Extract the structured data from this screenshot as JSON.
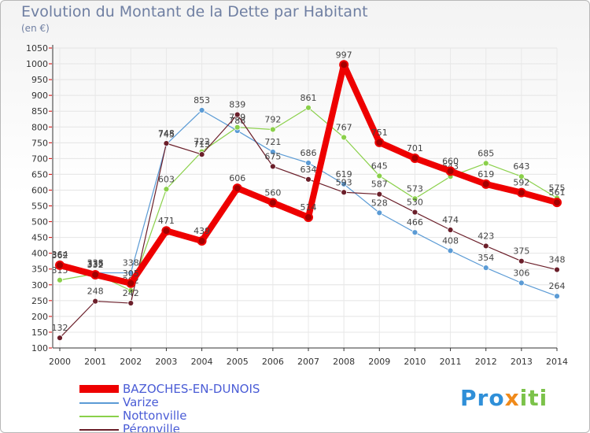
{
  "chart_data": {
    "type": "line",
    "title": "Evolution du Montant de la Dette par Habitant",
    "subtitle": "(en €)",
    "xlabel": "",
    "ylabel": "",
    "ylim": [
      100,
      1050
    ],
    "yticks": [
      100,
      150,
      200,
      250,
      300,
      350,
      400,
      450,
      500,
      550,
      600,
      650,
      700,
      750,
      800,
      850,
      900,
      950,
      1000,
      1050
    ],
    "categories": [
      "2000",
      "2001",
      "2002",
      "2003",
      "2004",
      "2005",
      "2006",
      "2007",
      "2008",
      "2009",
      "2010",
      "2011",
      "2012",
      "2013",
      "2014"
    ],
    "series": [
      {
        "name": "Varize",
        "color": "#5b9bd5",
        "values": [
          364,
          338,
          338,
          745,
          853,
          788,
          721,
          686,
          619,
          528,
          466,
          408,
          354,
          306,
          264
        ]
      },
      {
        "name": "Nottonville",
        "color": "#8ad04a",
        "values": [
          315,
          335,
          282,
          603,
          722,
          799,
          792,
          861,
          767,
          645,
          573,
          643,
          685,
          643,
          575
        ]
      },
      {
        "name": "Péronville",
        "color": "#6b1f2a",
        "values": [
          132,
          248,
          242,
          748,
          713,
          839,
          675,
          634,
          593,
          587,
          530,
          474,
          423,
          375,
          348
        ]
      },
      {
        "name": "BAZOCHES-EN-DUNOIS",
        "color": "#ee0000",
        "values": [
          362,
          332,
          305,
          471,
          439,
          606,
          560,
          514,
          997,
          751,
          701,
          660,
          619,
          592,
          561
        ]
      }
    ],
    "legend": [
      "BAZOCHES-EN-DUNOIS",
      "Varize",
      "Nottonville",
      "Péronville"
    ],
    "legend_position": "bottom-left",
    "brand": {
      "part1": "Pro",
      "part2": "x",
      "part3": "iti"
    }
  }
}
